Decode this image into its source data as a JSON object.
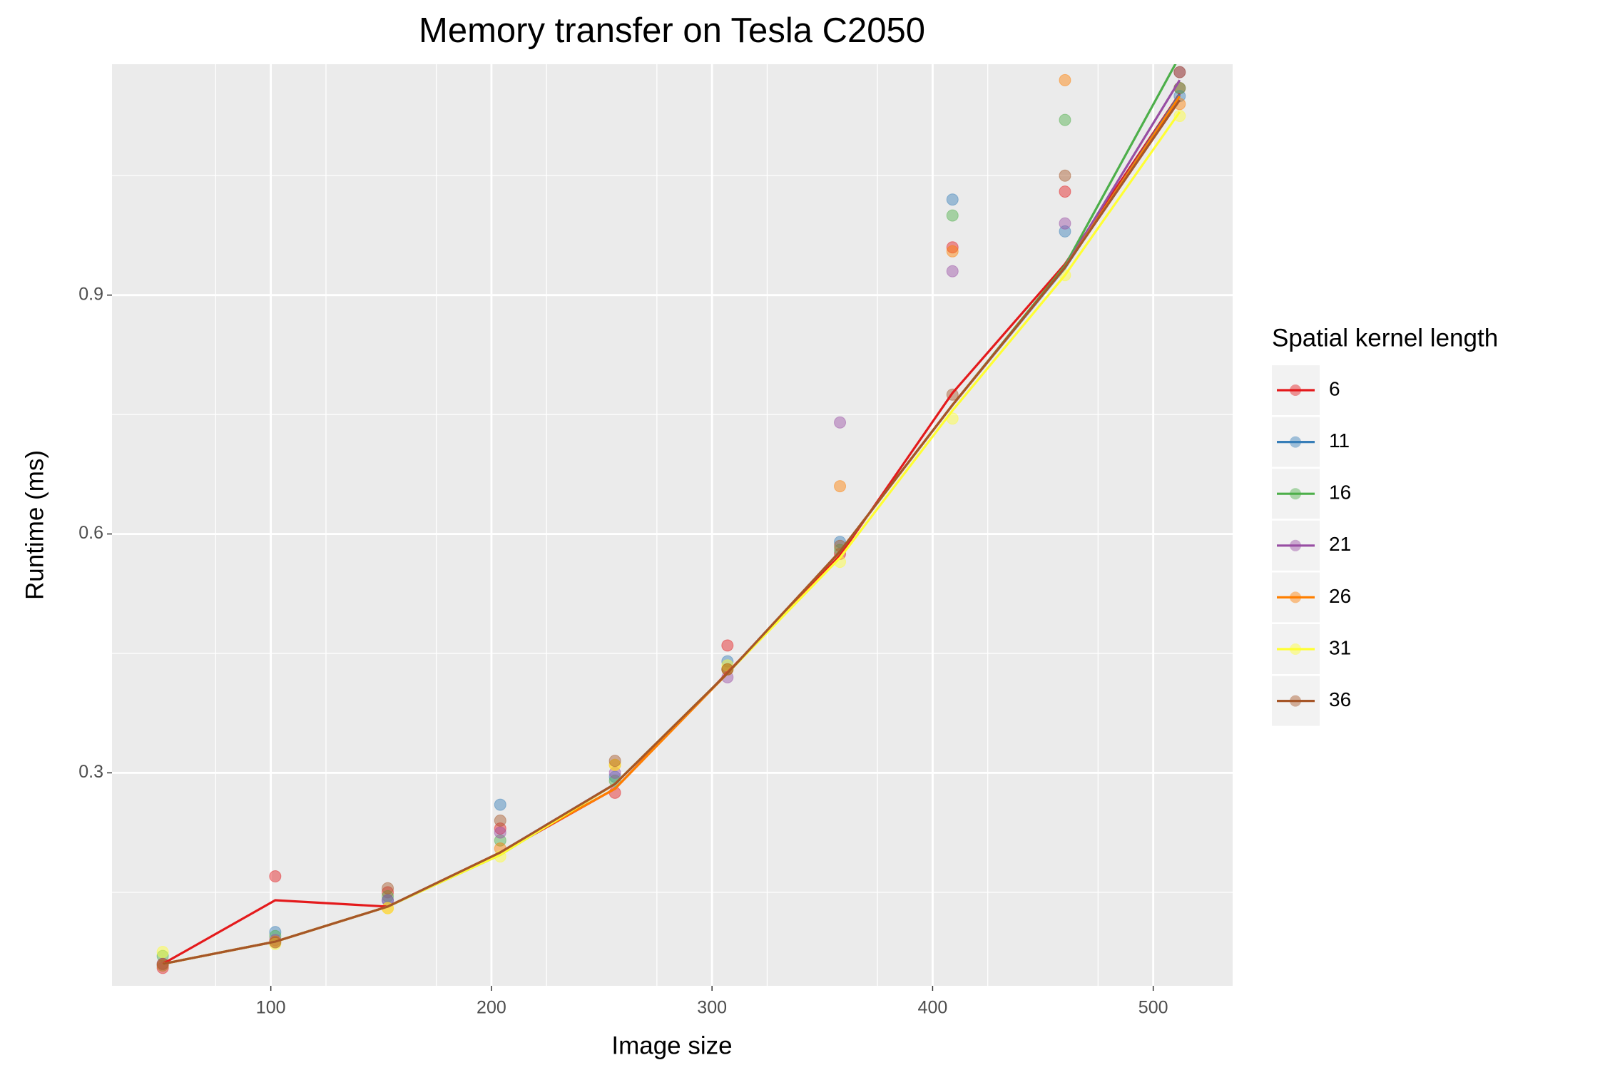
{
  "chart_data": {
    "type": "line",
    "title": "Memory transfer on Tesla C2050",
    "xlabel": "Image size",
    "ylabel": "Runtime (ms)",
    "legend_title": "Spatial kernel length",
    "legend": "right",
    "grid": true,
    "x": [
      51,
      102,
      153,
      204,
      256,
      307,
      358,
      409,
      460,
      512
    ],
    "xlim": [
      28,
      536
    ],
    "ylim": [
      0.0325,
      1.19
    ],
    "xticks": [
      100,
      200,
      300,
      400,
      500
    ],
    "yticks": [
      0.3,
      0.6,
      0.9
    ],
    "xminor": [
      75,
      125,
      175,
      225,
      275,
      325,
      375,
      425,
      475
    ],
    "yminor": [
      0.15,
      0.45,
      0.75,
      1.05
    ],
    "series": [
      {
        "name": "6",
        "color": "#e41a1c",
        "values": [
          0.06,
          0.14,
          0.132,
          0.199,
          0.28,
          0.426,
          0.573,
          0.777,
          0.939,
          1.153
        ],
        "points": [
          0.055,
          0.17,
          0.15,
          0.23,
          0.275,
          0.46,
          0.575,
          0.96,
          1.03,
          1.16
        ]
      },
      {
        "name": "11",
        "color": "#377eb8",
        "values": [
          0.06,
          0.088,
          0.132,
          0.2,
          0.286,
          0.425,
          0.578,
          0.762,
          0.934,
          1.152
        ],
        "points": [
          0.058,
          0.1,
          0.14,
          0.26,
          0.295,
          0.44,
          0.59,
          1.02,
          0.98,
          1.15
        ]
      },
      {
        "name": "16",
        "color": "#4daf4a",
        "values": [
          0.06,
          0.088,
          0.132,
          0.197,
          0.286,
          0.425,
          0.578,
          0.762,
          0.937,
          1.2
        ],
        "points": [
          0.07,
          0.095,
          0.145,
          0.215,
          0.29,
          0.43,
          0.58,
          1.0,
          1.12,
          1.16
        ]
      },
      {
        "name": "21",
        "color": "#984ea3",
        "values": [
          0.06,
          0.088,
          0.132,
          0.2,
          0.286,
          0.425,
          0.578,
          0.762,
          0.935,
          1.17
        ],
        "points": [
          0.06,
          0.09,
          0.14,
          0.225,
          0.3,
          0.42,
          0.74,
          0.93,
          0.99,
          1.18
        ]
      },
      {
        "name": "26",
        "color": "#ff7f00",
        "values": [
          0.06,
          0.088,
          0.132,
          0.2,
          0.28,
          0.425,
          0.578,
          0.762,
          0.935,
          1.15
        ],
        "points": [
          0.058,
          0.088,
          0.13,
          0.205,
          0.31,
          0.43,
          0.66,
          0.955,
          1.17,
          1.14
        ]
      },
      {
        "name": "31",
        "color": "#ffff33",
        "values": [
          0.06,
          0.088,
          0.132,
          0.197,
          0.286,
          0.425,
          0.57,
          0.755,
          0.925,
          1.13
        ],
        "points": [
          0.075,
          0.085,
          0.13,
          0.195,
          0.31,
          0.435,
          0.565,
          0.745,
          0.925,
          1.125
        ]
      },
      {
        "name": "36",
        "color": "#a65628",
        "values": [
          0.06,
          0.088,
          0.132,
          0.2,
          0.286,
          0.425,
          0.578,
          0.762,
          0.935,
          1.145
        ],
        "points": [
          0.06,
          0.087,
          0.155,
          0.24,
          0.315,
          0.43,
          0.585,
          0.775,
          1.05,
          1.18
        ]
      }
    ]
  }
}
